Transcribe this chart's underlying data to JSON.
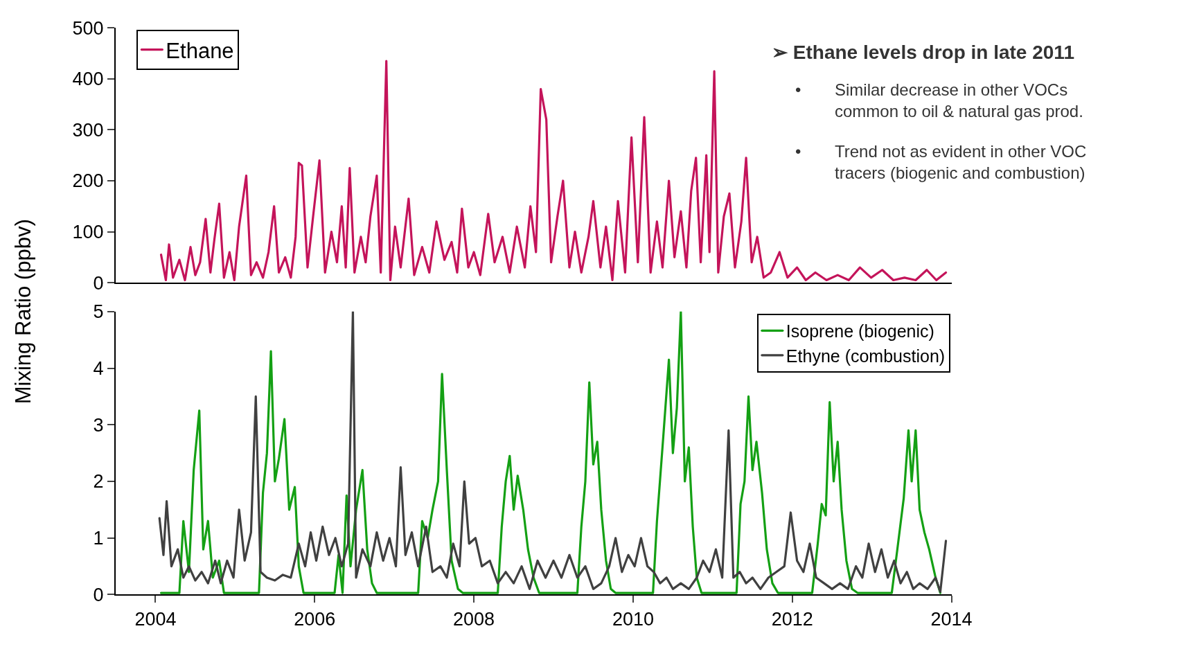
{
  "chart_data": [
    {
      "type": "line",
      "ylabel": "Mixing Ratio (ppbv)",
      "xlim": [
        2003.5,
        2014
      ],
      "ylim": [
        0,
        500
      ],
      "yticks": [
        0,
        100,
        200,
        300,
        400,
        500
      ],
      "tick_labels": "y",
      "legend": "top left",
      "marker": "none",
      "line_style": "solid",
      "annotations": [
        "➢ Ethane levels drop in late 2011",
        "•\tSimilar decrease in other VOCs\ncommon to oil & natural gas prod.",
        "•\tTrend not as evident in other VOC\ntracers (biogenic and combustion)"
      ],
      "series": [
        {
          "name": "Ethane",
          "color": "#c4145a",
          "x": [
            2004.07,
            2004.13,
            2004.17,
            2004.22,
            2004.3,
            2004.37,
            2004.44,
            2004.5,
            2004.56,
            2004.63,
            2004.69,
            2004.74,
            2004.8,
            2004.86,
            2004.93,
            2004.99,
            2005.05,
            2005.14,
            2005.2,
            2005.27,
            2005.35,
            2005.42,
            2005.49,
            2005.55,
            2005.63,
            2005.7,
            2005.76,
            2005.8,
            2005.84,
            2005.91,
            2005.98,
            2006.06,
            2006.13,
            2006.21,
            2006.28,
            2006.34,
            2006.39,
            2006.44,
            2006.5,
            2006.58,
            2006.64,
            2006.7,
            2006.78,
            2006.83,
            2006.9,
            2006.95,
            2007.01,
            2007.08,
            2007.18,
            2007.25,
            2007.35,
            2007.44,
            2007.53,
            2007.63,
            2007.72,
            2007.79,
            2007.85,
            2007.93,
            2008.0,
            2008.08,
            2008.18,
            2008.26,
            2008.36,
            2008.45,
            2008.54,
            2008.64,
            2008.71,
            2008.78,
            2008.84,
            2008.91,
            2008.97,
            2009.05,
            2009.12,
            2009.2,
            2009.27,
            2009.35,
            2009.44,
            2009.5,
            2009.59,
            2009.66,
            2009.74,
            2009.81,
            2009.9,
            2009.98,
            2010.06,
            2010.14,
            2010.22,
            2010.3,
            2010.37,
            2010.45,
            2010.52,
            2010.6,
            2010.67,
            2010.73,
            2010.79,
            2010.85,
            2010.92,
            2010.96,
            2011.02,
            2011.07,
            2011.14,
            2011.21,
            2011.28,
            2011.36,
            2011.42,
            2011.49,
            2011.56,
            2011.64,
            2011.73,
            2011.84,
            2011.94,
            2012.06,
            2012.17,
            2012.29,
            2012.43,
            2012.57,
            2012.71,
            2012.85,
            2012.99,
            2013.13,
            2013.27,
            2013.41,
            2013.55,
            2013.69,
            2013.81,
            2013.93
          ],
          "values": [
            55,
            5,
            75,
            10,
            45,
            5,
            70,
            15,
            40,
            125,
            20,
            85,
            155,
            10,
            60,
            5,
            110,
            210,
            15,
            40,
            10,
            60,
            150,
            20,
            50,
            10,
            90,
            235,
            230,
            30,
            130,
            240,
            20,
            100,
            40,
            150,
            30,
            225,
            20,
            90,
            40,
            130,
            210,
            20,
            435,
            5,
            110,
            30,
            165,
            15,
            70,
            20,
            120,
            45,
            80,
            20,
            145,
            30,
            60,
            15,
            135,
            40,
            90,
            20,
            110,
            30,
            150,
            60,
            380,
            320,
            40,
            130,
            200,
            30,
            100,
            20,
            90,
            160,
            30,
            110,
            5,
            160,
            20,
            285,
            40,
            325,
            20,
            120,
            30,
            200,
            50,
            140,
            30,
            180,
            245,
            40,
            250,
            60,
            415,
            20,
            130,
            175,
            30,
            120,
            245,
            40,
            90,
            10,
            20,
            60,
            10,
            30,
            5,
            20,
            5,
            15,
            5,
            30,
            10,
            25,
            5,
            10,
            5,
            25,
            5,
            20
          ]
        }
      ]
    },
    {
      "type": "line",
      "xlim": [
        2003.5,
        2014
      ],
      "xticks": [
        2004,
        2006,
        2008,
        2010,
        2012,
        2014
      ],
      "ylim": [
        0,
        5
      ],
      "yticks": [
        0,
        1,
        2,
        3,
        4,
        5
      ],
      "legend": "top right",
      "marker": "none",
      "line_style": "solid",
      "series": [
        {
          "name": "Isoprene (biogenic)",
          "color": "#14a014",
          "x": [
            2004.07,
            2004.3,
            2004.35,
            2004.42,
            2004.48,
            2004.55,
            2004.6,
            2004.66,
            2004.72,
            2004.8,
            2004.86,
            2005.3,
            2005.35,
            2005.4,
            2005.45,
            2005.5,
            2005.55,
            2005.62,
            2005.68,
            2005.75,
            2005.8,
            2005.86,
            2006.25,
            2006.3,
            2006.35,
            2006.4,
            2006.45,
            2006.52,
            2006.6,
            2006.66,
            2006.72,
            2006.78,
            2007.3,
            2007.35,
            2007.42,
            2007.48,
            2007.55,
            2007.6,
            2007.66,
            2007.72,
            2007.8,
            2007.86,
            2008.3,
            2008.35,
            2008.4,
            2008.45,
            2008.5,
            2008.55,
            2008.62,
            2008.68,
            2008.75,
            2008.82,
            2009.3,
            2009.35,
            2009.4,
            2009.45,
            2009.5,
            2009.55,
            2009.6,
            2009.66,
            2009.72,
            2009.78,
            2010.25,
            2010.3,
            2010.38,
            2010.45,
            2010.5,
            2010.55,
            2010.6,
            2010.65,
            2010.7,
            2010.75,
            2010.8,
            2010.86,
            2011.3,
            2011.35,
            2011.4,
            2011.45,
            2011.5,
            2011.55,
            2011.62,
            2011.68,
            2011.75,
            2011.82,
            2012.25,
            2012.32,
            2012.37,
            2012.42,
            2012.47,
            2012.52,
            2012.57,
            2012.62,
            2012.68,
            2012.75,
            2012.82,
            2013.25,
            2013.32,
            2013.4,
            2013.46,
            2013.5,
            2013.55,
            2013.6,
            2013.66,
            2013.72,
            2013.8,
            2013.86
          ],
          "values": [
            0.03,
            0.03,
            1.3,
            0.4,
            2.2,
            3.25,
            0.8,
            1.3,
            0.3,
            0.6,
            0.03,
            0.03,
            1.8,
            2.5,
            4.3,
            2.0,
            2.4,
            3.1,
            1.5,
            1.9,
            0.5,
            0.03,
            0.03,
            0.7,
            0.03,
            1.75,
            0.5,
            1.5,
            2.2,
            0.8,
            0.2,
            0.03,
            0.03,
            1.3,
            1.0,
            1.5,
            2.0,
            3.9,
            2.2,
            0.6,
            0.1,
            0.03,
            0.03,
            1.2,
            2.0,
            2.45,
            1.5,
            2.1,
            1.5,
            0.8,
            0.3,
            0.03,
            0.03,
            1.2,
            2.0,
            3.75,
            2.3,
            2.7,
            1.5,
            0.6,
            0.1,
            0.03,
            0.03,
            1.3,
            2.8,
            4.15,
            2.5,
            3.3,
            5.0,
            2.0,
            2.6,
            1.2,
            0.3,
            0.03,
            0.03,
            1.6,
            2.0,
            3.5,
            2.2,
            2.7,
            1.8,
            0.8,
            0.2,
            0.03,
            0.03,
            0.9,
            1.6,
            1.4,
            3.4,
            2.0,
            2.7,
            1.5,
            0.6,
            0.1,
            0.03,
            0.03,
            0.8,
            1.7,
            2.9,
            2.0,
            2.9,
            1.5,
            1.1,
            0.8,
            0.3,
            0.03
          ]
        },
        {
          "name": "Ethyne (combustion)",
          "color": "#404040",
          "x": [
            2004.05,
            2004.1,
            2004.14,
            2004.2,
            2004.28,
            2004.35,
            2004.42,
            2004.5,
            2004.58,
            2004.66,
            2004.75,
            2004.82,
            2004.9,
            2004.98,
            2005.05,
            2005.12,
            2005.2,
            2005.26,
            2005.32,
            2005.4,
            2005.5,
            2005.6,
            2005.7,
            2005.8,
            2005.88,
            2005.95,
            2006.02,
            2006.1,
            2006.18,
            2006.26,
            2006.34,
            2006.42,
            2006.48,
            2006.52,
            2006.6,
            2006.7,
            2006.78,
            2006.86,
            2006.94,
            2007.02,
            2007.08,
            2007.14,
            2007.22,
            2007.3,
            2007.4,
            2007.48,
            2007.58,
            2007.66,
            2007.74,
            2007.82,
            2007.88,
            2007.94,
            2008.02,
            2008.1,
            2008.2,
            2008.3,
            2008.4,
            2008.5,
            2008.6,
            2008.7,
            2008.8,
            2008.9,
            2009.0,
            2009.1,
            2009.2,
            2009.3,
            2009.4,
            2009.5,
            2009.6,
            2009.7,
            2009.78,
            2009.86,
            2009.94,
            2010.02,
            2010.1,
            2010.18,
            2010.26,
            2010.34,
            2010.42,
            2010.5,
            2010.6,
            2010.7,
            2010.8,
            2010.88,
            2010.96,
            2011.04,
            2011.12,
            2011.2,
            2011.26,
            2011.34,
            2011.42,
            2011.5,
            2011.6,
            2011.7,
            2011.8,
            2011.9,
            2011.98,
            2012.06,
            2012.14,
            2012.22,
            2012.3,
            2012.4,
            2012.5,
            2012.6,
            2012.7,
            2012.8,
            2012.88,
            2012.96,
            2013.04,
            2013.12,
            2013.2,
            2013.28,
            2013.36,
            2013.44,
            2013.52,
            2013.6,
            2013.7,
            2013.8,
            2013.86,
            2013.93
          ],
          "values": [
            1.35,
            0.7,
            1.65,
            0.5,
            0.8,
            0.3,
            0.5,
            0.25,
            0.4,
            0.2,
            0.6,
            0.2,
            0.6,
            0.3,
            1.5,
            0.6,
            1.1,
            3.5,
            0.4,
            0.3,
            0.25,
            0.35,
            0.3,
            0.9,
            0.5,
            1.1,
            0.6,
            1.2,
            0.7,
            1.0,
            0.5,
            0.9,
            5.0,
            0.3,
            0.8,
            0.5,
            1.1,
            0.6,
            1.0,
            0.5,
            2.25,
            0.7,
            1.1,
            0.5,
            1.2,
            0.4,
            0.5,
            0.3,
            0.9,
            0.5,
            2.0,
            0.9,
            1.0,
            0.5,
            0.6,
            0.2,
            0.4,
            0.2,
            0.5,
            0.1,
            0.6,
            0.3,
            0.6,
            0.3,
            0.7,
            0.3,
            0.5,
            0.1,
            0.2,
            0.5,
            1.0,
            0.4,
            0.7,
            0.5,
            1.0,
            0.5,
            0.4,
            0.2,
            0.3,
            0.1,
            0.2,
            0.1,
            0.3,
            0.6,
            0.4,
            0.8,
            0.3,
            2.9,
            0.3,
            0.4,
            0.2,
            0.3,
            0.1,
            0.3,
            0.4,
            0.5,
            1.45,
            0.6,
            0.4,
            0.9,
            0.3,
            0.2,
            0.1,
            0.2,
            0.1,
            0.5,
            0.3,
            0.9,
            0.4,
            0.8,
            0.3,
            0.6,
            0.2,
            0.4,
            0.1,
            0.2,
            0.1,
            0.3,
            0.05,
            0.95
          ]
        }
      ]
    }
  ]
}
